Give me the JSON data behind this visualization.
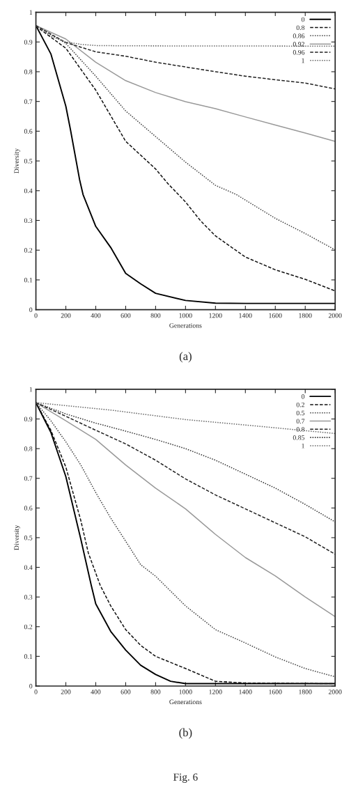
{
  "chart_data": [
    {
      "type": "line",
      "xlabel": "Generations",
      "ylabel": "Diversity",
      "xlim": [
        0,
        2000
      ],
      "ylim": [
        0,
        1
      ],
      "xticks": [
        0,
        200,
        400,
        600,
        800,
        1000,
        1200,
        1400,
        1600,
        1800,
        2000
      ],
      "yticks": [
        0,
        0.1,
        0.2,
        0.3,
        0.4,
        0.5,
        0.6,
        0.7,
        0.8,
        0.9,
        1
      ],
      "grid": false,
      "legend": "top right",
      "marker": "none",
      "annotations": [
        "(a)"
      ],
      "series": [
        {
          "name": "0",
          "color": "#000000",
          "line_style": "solid",
          "x": [
            0,
            100,
            200,
            231,
            292,
            315,
            400,
            500,
            600,
            700,
            800,
            1000,
            1200,
            1400,
            2000
          ],
          "values": [
            0.955,
            0.86,
            0.684,
            0.605,
            0.437,
            0.387,
            0.28,
            0.209,
            0.122,
            0.087,
            0.055,
            0.031,
            0.022,
            0.021,
            0.021
          ]
        },
        {
          "name": "0.8",
          "color": "#111111",
          "line_style": "dashed",
          "x": [
            0,
            200,
            400,
            600,
            800,
            880,
            1000,
            1100,
            1200,
            1400,
            1600,
            1800,
            2000
          ],
          "values": [
            0.953,
            0.879,
            0.738,
            0.566,
            0.473,
            0.425,
            0.362,
            0.299,
            0.248,
            0.177,
            0.134,
            0.102,
            0.063
          ]
        },
        {
          "name": "0.86",
          "color": "#444444",
          "line_style": "dotted",
          "x": [
            0,
            200,
            400,
            600,
            800,
            1000,
            1200,
            1340,
            1600,
            1800,
            2000
          ],
          "values": [
            0.955,
            0.895,
            0.785,
            0.668,
            0.582,
            0.496,
            0.418,
            0.387,
            0.307,
            0.256,
            0.201
          ]
        },
        {
          "name": "0.92",
          "color": "#999999",
          "line_style": "solid",
          "x": [
            0,
            200,
            400,
            600,
            800,
            1000,
            1200,
            1400,
            1600,
            1800,
            2000
          ],
          "values": [
            0.955,
            0.91,
            0.832,
            0.77,
            0.73,
            0.699,
            0.676,
            0.648,
            0.621,
            0.594,
            0.566
          ]
        },
        {
          "name": "0.96",
          "color": "#222222",
          "line_style": "dashed",
          "x": [
            0,
            200,
            400,
            600,
            800,
            1000,
            1200,
            1400,
            1600,
            1800,
            2000
          ],
          "values": [
            0.955,
            0.898,
            0.867,
            0.852,
            0.832,
            0.816,
            0.8,
            0.785,
            0.773,
            0.762,
            0.742
          ]
        },
        {
          "name": "1",
          "color": "#666666",
          "line_style": "dotted",
          "x": [
            0,
            100,
            200,
            300,
            400,
            600,
            2000
          ],
          "values": [
            0.955,
            0.92,
            0.9,
            0.892,
            0.888,
            0.887,
            0.886
          ]
        }
      ]
    },
    {
      "type": "line",
      "xlabel": "Generations",
      "ylabel": "Diversity",
      "xlim": [
        0,
        2000
      ],
      "ylim": [
        0,
        1
      ],
      "xticks": [
        0,
        200,
        400,
        600,
        800,
        1000,
        1200,
        1400,
        1600,
        1800,
        2000
      ],
      "yticks": [
        0,
        0.1,
        0.2,
        0.3,
        0.4,
        0.5,
        0.6,
        0.7,
        0.8,
        0.9,
        1
      ],
      "grid": false,
      "legend": "top right",
      "marker": "none",
      "annotations": [
        "(b)",
        "Fig. 6"
      ],
      "series": [
        {
          "name": "0",
          "color": "#000000",
          "line_style": "solid",
          "x": [
            0,
            100,
            200,
            300,
            370,
            400,
            500,
            600,
            700,
            800,
            900,
            1000,
            2000
          ],
          "values": [
            0.955,
            0.855,
            0.706,
            0.495,
            0.339,
            0.277,
            0.184,
            0.121,
            0.07,
            0.039,
            0.016,
            0.008,
            0.008
          ]
        },
        {
          "name": "0.2",
          "color": "#111111",
          "line_style": "dashed",
          "x": [
            0,
            100,
            200,
            300,
            350,
            430,
            500,
            600,
            700,
            800,
            1000,
            1200,
            1400,
            2000
          ],
          "values": [
            0.955,
            0.862,
            0.738,
            0.558,
            0.449,
            0.339,
            0.27,
            0.19,
            0.137,
            0.1,
            0.059,
            0.016,
            0.01,
            0.008
          ]
        },
        {
          "name": "0.5",
          "color": "#444444",
          "line_style": "dotted",
          "x": [
            0,
            100,
            200,
            300,
            400,
            500,
            600,
            700,
            800,
            1000,
            1200,
            1400,
            1600,
            1800,
            2000
          ],
          "values": [
            0.955,
            0.894,
            0.823,
            0.745,
            0.652,
            0.566,
            0.488,
            0.409,
            0.37,
            0.27,
            0.19,
            0.145,
            0.098,
            0.059,
            0.031
          ]
        },
        {
          "name": "0.7",
          "color": "#999999",
          "line_style": "solid",
          "x": [
            0,
            200,
            400,
            600,
            800,
            1000,
            1200,
            1400,
            1600,
            1800,
            2000
          ],
          "values": [
            0.955,
            0.894,
            0.831,
            0.745,
            0.667,
            0.597,
            0.511,
            0.433,
            0.371,
            0.3,
            0.234
          ]
        },
        {
          "name": "0.8",
          "color": "#222222",
          "line_style": "dashed",
          "x": [
            0,
            200,
            400,
            600,
            800,
            1000,
            1200,
            1400,
            1600,
            1800,
            2000
          ],
          "values": [
            0.955,
            0.909,
            0.862,
            0.816,
            0.761,
            0.698,
            0.644,
            0.597,
            0.55,
            0.503,
            0.444
          ]
        },
        {
          "name": "0.85",
          "color": "#333333",
          "line_style": "dotted",
          "x": [
            0,
            200,
            400,
            600,
            800,
            1000,
            1200,
            1400,
            1600,
            1800,
            2000
          ],
          "values": [
            0.955,
            0.917,
            0.886,
            0.859,
            0.831,
            0.8,
            0.761,
            0.714,
            0.667,
            0.612,
            0.553
          ]
        },
        {
          "name": "1",
          "color": "#666666",
          "line_style": "dotted",
          "x": [
            0,
            500,
            1000,
            1500,
            2000
          ],
          "values": [
            0.955,
            0.93,
            0.898,
            0.875,
            0.851
          ]
        }
      ]
    }
  ]
}
